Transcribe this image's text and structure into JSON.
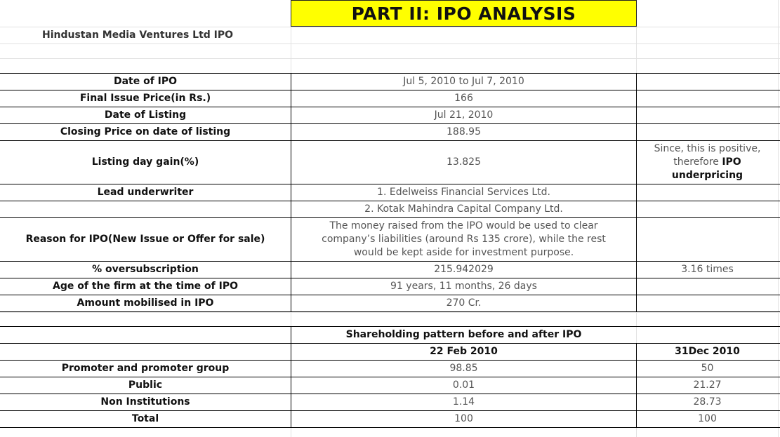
{
  "title": "PART II: IPO ANALYSIS",
  "company": "Hindustan Media Ventures Ltd IPO",
  "rows": [
    {
      "label": "Date of IPO",
      "value": "Jul 5, 2010 to Jul 7, 2010",
      "note": ""
    },
    {
      "label": "Final Issue Price(in Rs.)",
      "value": "166",
      "note": ""
    },
    {
      "label": "Date of Listing",
      "value": "Jul 21, 2010",
      "note": ""
    },
    {
      "label": "Closing Price on date of listing",
      "value": "188.95",
      "note": ""
    },
    {
      "label": "Listing day gain(%)",
      "value": "13.825",
      "note_pre": "Since, this is positive, therefore ",
      "note_bold": "IPO underpricing"
    },
    {
      "label": "Lead underwriter",
      "value": "1. Edelweiss Financial Services Ltd.",
      "note": ""
    },
    {
      "label": "",
      "value": "2. Kotak Mahindra Capital Company Ltd.",
      "note": ""
    },
    {
      "label": "Reason for IPO(New Issue or Offer for sale)",
      "value": "The money raised from the IPO would be used to clear company’s liabilities (around Rs 135 crore), while the rest would be kept aside for investment purpose.",
      "note": ""
    },
    {
      "label": "% oversubscription",
      "value": "215.942029",
      "note": "3.16 times"
    },
    {
      "label": "Age of the firm at the time of IPO",
      "value": "91 years, 11 months, 26 days",
      "note": ""
    },
    {
      "label": "Amount mobilised in IPO",
      "value": "270 Cr.",
      "note": ""
    }
  ],
  "shareholding": {
    "heading": "Shareholding pattern before and after IPO",
    "col_before": "22 Feb 2010",
    "col_after": "31Dec 2010",
    "rows": [
      {
        "label": "Promoter and promoter group",
        "before": "98.85",
        "after": "50"
      },
      {
        "label": "Public",
        "before": "0.01",
        "after": "21.27"
      },
      {
        "label": "Non Institutions",
        "before": "1.14",
        "after": "28.73"
      },
      {
        "label": "Total",
        "before": "100",
        "after": "100"
      }
    ]
  },
  "colors": {
    "title_bg": "#ffff00",
    "border": "#000000",
    "gridline": "#e2e2e2"
  }
}
